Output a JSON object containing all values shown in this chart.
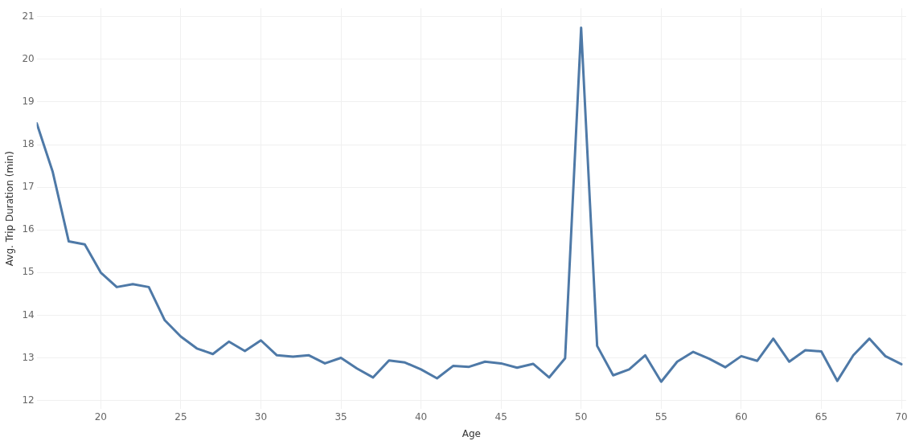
{
  "chart_data": {
    "type": "line",
    "xlabel": "Age",
    "ylabel": "Avg. Trip Duration (min)",
    "x": [
      16,
      17,
      18,
      19,
      20,
      21,
      22,
      23,
      24,
      25,
      26,
      27,
      28,
      29,
      30,
      31,
      32,
      33,
      34,
      35,
      36,
      37,
      38,
      39,
      40,
      41,
      42,
      43,
      44,
      45,
      46,
      47,
      48,
      49,
      50,
      51,
      52,
      53,
      54,
      55,
      56,
      57,
      58,
      59,
      60,
      61,
      62,
      63,
      64,
      65,
      66,
      67,
      68,
      69,
      70
    ],
    "series": [
      {
        "color": "#4e79a7",
        "values": [
          18.5,
          17.36,
          15.73,
          15.66,
          15.0,
          14.66,
          14.73,
          14.66,
          13.88,
          13.5,
          13.22,
          13.09,
          13.38,
          13.16,
          13.41,
          13.06,
          13.03,
          13.06,
          12.87,
          13.0,
          12.75,
          12.54,
          12.94,
          12.89,
          12.73,
          12.52,
          12.81,
          12.79,
          12.91,
          12.87,
          12.77,
          12.86,
          12.54,
          12.99,
          20.74,
          13.28,
          12.59,
          12.73,
          13.06,
          12.44,
          12.91,
          13.14,
          12.98,
          12.78,
          13.04,
          12.93,
          13.45,
          12.91,
          13.18,
          13.15,
          12.46,
          13.06,
          13.45,
          13.04,
          12.85
        ]
      }
    ],
    "xlim": [
      16,
      70.3
    ],
    "xticks": [
      20,
      25,
      30,
      35,
      40,
      45,
      50,
      55,
      60,
      65,
      70
    ],
    "ylim": [
      11.8,
      21.2
    ],
    "yticks": [
      12,
      13,
      14,
      15,
      16,
      17,
      18,
      19,
      20,
      21
    ],
    "grid": true,
    "legend": false,
    "marker": "none",
    "line_style": "solid"
  }
}
